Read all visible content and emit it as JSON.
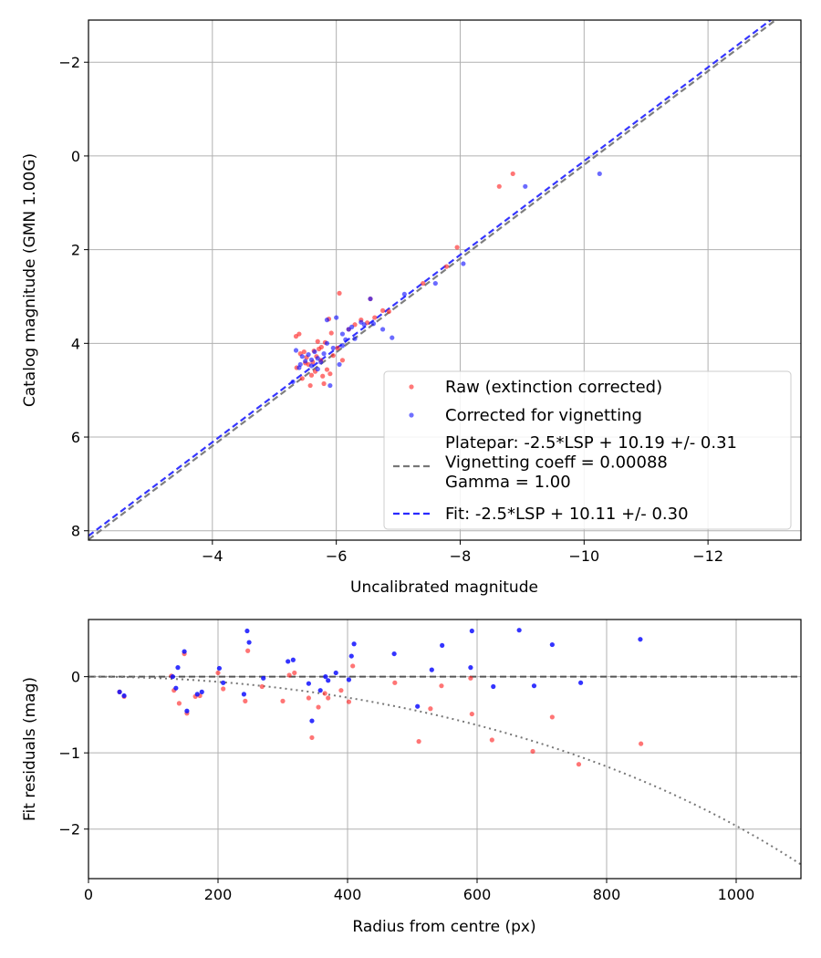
{
  "chart_data": [
    {
      "type": "scatter",
      "xlabel": "Uncalibrated magnitude",
      "ylabel": "Catalog magnitude (GMN 1.00G)",
      "xlim": [
        -2,
        -13.5
      ],
      "ylim": [
        8.2,
        -2.9
      ],
      "x_ticks": [
        -4,
        -6,
        -8,
        -10,
        -12
      ],
      "x_tick_labels": [
        "−4",
        "−6",
        "−8",
        "−10",
        "−12"
      ],
      "y_ticks": [
        -2,
        0,
        2,
        4,
        6,
        8
      ],
      "y_tick_labels": [
        "−2",
        "0",
        "2",
        "4",
        "6",
        "8"
      ],
      "grid": true,
      "legend_position": "lower-right",
      "series": [
        {
          "name": "Raw (extinction corrected)",
          "kind": "points",
          "color": "#ff2020",
          "x": [
            -8.63,
            -8.85,
            -6.05,
            -6.55,
            -5.4,
            -5.35,
            -5.7,
            -5.72,
            -5.95,
            -5.75,
            -5.55,
            -5.85,
            -5.6,
            -5.45,
            -5.8,
            -6.1,
            -6.2,
            -6.3,
            -6.4,
            -6.5,
            -6.62,
            -6.75,
            -6.85,
            -7.4,
            -7.78,
            -7.95,
            -5.42,
            -5.52,
            -5.88,
            -5.66,
            -5.36,
            -5.62,
            -5.48,
            -5.9,
            -5.76,
            -5.82,
            -5.58,
            -5.68,
            -6.02,
            -5.5,
            -5.92,
            -5.64,
            -5.78
          ],
          "y": [
            0.65,
            0.38,
            2.93,
            3.05,
            3.8,
            3.85,
            3.96,
            4.12,
            4.26,
            4.36,
            4.45,
            4.56,
            4.68,
            4.75,
            4.86,
            4.36,
            3.7,
            3.6,
            3.5,
            3.56,
            3.45,
            3.3,
            3.32,
            2.72,
            2.36,
            1.95,
            4.22,
            4.3,
            3.48,
            4.6,
            4.52,
            4.4,
            4.18,
            4.65,
            4.08,
            3.98,
            4.9,
            4.28,
            4.1,
            4.42,
            3.78,
            4.16,
            4.7
          ]
        },
        {
          "name": "Corrected for vignetting",
          "kind": "points",
          "color": "#1010ff",
          "x": [
            -10.25,
            -9.05,
            -8.05,
            -7.6,
            -7.1,
            -6.55,
            -6.6,
            -6.75,
            -6.9,
            -6.2,
            -6.25,
            -6.1,
            -6.0,
            -5.85,
            -5.8,
            -5.7,
            -5.6,
            -5.5,
            -5.4,
            -5.3,
            -5.9,
            -6.05,
            -5.95,
            -5.65,
            -5.45,
            -6.3,
            -6.15,
            -5.75,
            -5.55,
            -5.35,
            -6.4,
            -6.1,
            -5.85,
            -5.7,
            -6.45,
            -5.6,
            -5.42
          ],
          "y": [
            0.38,
            0.65,
            2.3,
            2.72,
            2.95,
            3.05,
            3.58,
            3.7,
            3.88,
            3.7,
            3.65,
            3.8,
            3.45,
            3.5,
            4.22,
            4.32,
            4.48,
            4.38,
            4.52,
            4.82,
            4.9,
            4.45,
            4.1,
            4.18,
            4.28,
            3.9,
            3.92,
            4.4,
            4.24,
            4.15,
            3.55,
            4.05,
            4.0,
            4.55,
            3.6,
            4.35,
            4.45
          ]
        }
      ],
      "lines": [
        {
          "name": "Platepar: -2.5*LSP + 10.19 +/- 0.31\nVignetting coeff = 0.00088\nGamma = 1.00",
          "color": "#777777",
          "slope": 1.0,
          "intercept": 10.19
        },
        {
          "name": "Fit: -2.5*LSP + 10.11 +/- 0.30",
          "color": "#2a2aff",
          "slope": 1.0,
          "intercept": 10.11
        }
      ]
    },
    {
      "type": "scatter",
      "xlabel": "Radius from centre (px)",
      "ylabel": "Fit residuals (mag)",
      "xlim": [
        0,
        1100
      ],
      "ylim": [
        -2.65,
        0.75
      ],
      "x_ticks": [
        0,
        200,
        400,
        600,
        800,
        1000
      ],
      "x_tick_labels": [
        "0",
        "200",
        "400",
        "600",
        "800",
        "1000"
      ],
      "y_ticks": [
        -2,
        -1,
        0
      ],
      "y_tick_labels": [
        "−2",
        "−1",
        "0"
      ],
      "grid": true,
      "series": [
        {
          "name": "",
          "kind": "points",
          "color": "#ff2020",
          "x": [
            48,
            55,
            128,
            132,
            140,
            148,
            152,
            165,
            172,
            200,
            208,
            242,
            246,
            268,
            300,
            310,
            318,
            340,
            345,
            355,
            365,
            370,
            390,
            402,
            408,
            473,
            510,
            528,
            545,
            590,
            592,
            623,
            686,
            716,
            757,
            853
          ],
          "y": [
            -0.2,
            -0.26,
            0.01,
            -0.18,
            -0.35,
            0.3,
            -0.48,
            -0.26,
            -0.25,
            0.05,
            -0.16,
            -0.32,
            0.34,
            -0.13,
            -0.32,
            0.02,
            0.05,
            -0.28,
            -0.8,
            -0.4,
            -0.22,
            -0.28,
            -0.18,
            -0.33,
            0.14,
            -0.08,
            -0.85,
            -0.42,
            -0.12,
            -0.02,
            -0.49,
            -0.83,
            -0.98,
            -0.53,
            -1.15,
            -0.88
          ]
        },
        {
          "name": "",
          "kind": "points",
          "color": "#1010ff",
          "x": [
            48,
            55,
            130,
            135,
            138,
            148,
            152,
            168,
            175,
            202,
            208,
            240,
            245,
            248,
            270,
            308,
            316,
            340,
            345,
            358,
            366,
            370,
            382,
            402,
            406,
            410,
            472,
            508,
            530,
            546,
            590,
            592,
            625,
            665,
            688,
            716,
            760,
            852
          ],
          "y": [
            -0.2,
            -0.25,
            0.0,
            -0.15,
            0.12,
            0.33,
            -0.45,
            -0.23,
            -0.2,
            0.11,
            -0.08,
            -0.23,
            0.6,
            0.45,
            -0.02,
            0.2,
            0.22,
            -0.09,
            -0.58,
            -0.18,
            0.0,
            -0.05,
            0.05,
            -0.04,
            0.27,
            0.43,
            0.3,
            -0.39,
            0.09,
            0.41,
            0.12,
            0.6,
            -0.13,
            0.61,
            -0.12,
            0.42,
            -0.08,
            0.49
          ]
        }
      ],
      "reference_lines": [
        {
          "kind": "zero-dashed",
          "color": "#555555"
        },
        {
          "kind": "vignetting-dotted",
          "color": "#777777",
          "coeff": 0.00088
        }
      ]
    }
  ]
}
